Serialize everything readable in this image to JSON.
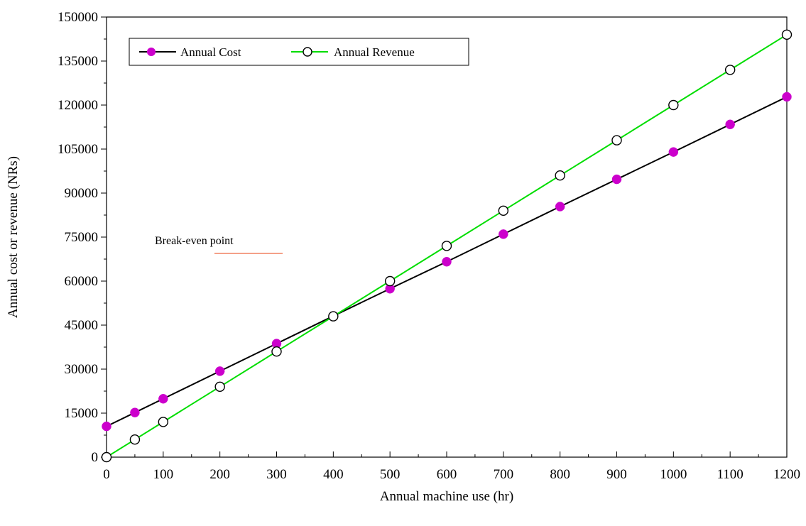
{
  "chart_data": {
    "type": "line",
    "xlabel": "Annual machine use (hr)",
    "ylabel": "Annual cost or revenue (NRs)",
    "xlim": [
      0,
      1200
    ],
    "ylim": [
      0,
      150000
    ],
    "x_ticks": [
      0,
      100,
      200,
      300,
      400,
      500,
      600,
      700,
      800,
      900,
      1000,
      1100,
      1200
    ],
    "y_ticks": [
      0,
      15000,
      30000,
      45000,
      60000,
      75000,
      90000,
      105000,
      120000,
      135000,
      150000
    ],
    "grid": false,
    "legend": {
      "placement": "top-left"
    },
    "series": [
      {
        "name": "Annual Cost",
        "color": "#000000",
        "marker": "filled-circle",
        "marker_color": "#cc00cc",
        "x": [
          0,
          50,
          100,
          200,
          300,
          400,
          500,
          600,
          700,
          800,
          900,
          1000,
          1100,
          1200
        ],
        "y": [
          10500,
          15200,
          19900,
          29300,
          38700,
          48100,
          57400,
          66600,
          76000,
          85400,
          94700,
          104000,
          113400,
          122800
        ]
      },
      {
        "name": "Annual Revenue",
        "color": "#00dd00",
        "marker": "open-circle",
        "marker_color": "#000000",
        "x": [
          0,
          50,
          100,
          200,
          300,
          400,
          500,
          600,
          700,
          800,
          900,
          1000,
          1100,
          1200
        ],
        "y": [
          0,
          6000,
          12000,
          24000,
          36000,
          48000,
          60000,
          72000,
          84000,
          96000,
          108000,
          120000,
          132000,
          144000
        ]
      }
    ],
    "annotations": [
      {
        "text": "Break-even point",
        "line_color": "#f08060"
      }
    ]
  }
}
